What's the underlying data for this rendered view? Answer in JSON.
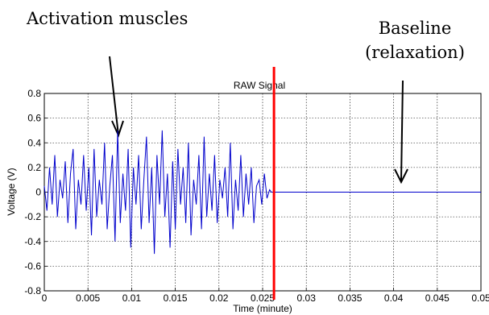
{
  "annotations": {
    "activation": "Activation muscles",
    "baseline_line1": "Baseline",
    "baseline_line2": "(relaxation)"
  },
  "chart_data": {
    "type": "line",
    "title": "RAW Signal",
    "xlabel": "Time (minute)",
    "ylabel": "Voltage (V)",
    "xlim": [
      0,
      0.05
    ],
    "ylim": [
      -0.8,
      0.8
    ],
    "x_ticks": [
      "0",
      "0.005",
      "0.01",
      "0.015",
      "0.02",
      "0.025",
      "0.03",
      "0.035",
      "0.04",
      "0.045",
      "0.05"
    ],
    "y_ticks": [
      "-0.8",
      "-0.6",
      "-0.4",
      "-0.2",
      "0",
      "0.2",
      "0.4",
      "0.6",
      "0.8"
    ],
    "grid": true,
    "series": [
      {
        "color": "#0000cc",
        "x": [
          0,
          0.0003,
          0.0006,
          0.0009,
          0.0012,
          0.0015,
          0.0018,
          0.0021,
          0.0024,
          0.0027,
          0.003,
          0.0033,
          0.0036,
          0.0039,
          0.0042,
          0.0045,
          0.0048,
          0.0051,
          0.0054,
          0.0057,
          0.006,
          0.0063,
          0.0066,
          0.0069,
          0.0072,
          0.0075,
          0.0078,
          0.0081,
          0.0084,
          0.0087,
          0.009,
          0.0093,
          0.0096,
          0.0099,
          0.0102,
          0.0105,
          0.0108,
          0.0111,
          0.0114,
          0.0117,
          0.012,
          0.0123,
          0.0126,
          0.0129,
          0.0132,
          0.0135,
          0.0138,
          0.0141,
          0.0144,
          0.0147,
          0.015,
          0.0153,
          0.0156,
          0.0159,
          0.0162,
          0.0165,
          0.0168,
          0.0171,
          0.0174,
          0.0177,
          0.018,
          0.0183,
          0.0186,
          0.0189,
          0.0192,
          0.0195,
          0.0198,
          0.0201,
          0.0204,
          0.0207,
          0.021,
          0.0213,
          0.0216,
          0.0219,
          0.0222,
          0.0225,
          0.0228,
          0.0231,
          0.0234,
          0.0237,
          0.024,
          0.0243,
          0.0246,
          0.0249,
          0.0252,
          0.0255,
          0.0258,
          0.026,
          0.0265,
          0.03,
          0.035,
          0.04,
          0.045,
          0.05
        ],
        "y": [
          0.05,
          -0.15,
          0.2,
          -0.1,
          0.3,
          -0.2,
          0.1,
          -0.05,
          0.25,
          -0.25,
          0.15,
          0.35,
          -0.3,
          0.1,
          -0.1,
          0.3,
          -0.15,
          0.2,
          -0.35,
          0.35,
          -0.2,
          0.1,
          -0.1,
          0.4,
          -0.3,
          0.05,
          0.3,
          -0.4,
          0.5,
          -0.25,
          0.15,
          -0.15,
          0.35,
          -0.45,
          0.2,
          -0.1,
          0.3,
          -0.3,
          0.1,
          0.45,
          -0.25,
          0.2,
          -0.5,
          0.3,
          -0.1,
          0.5,
          -0.2,
          0.15,
          -0.45,
          0.25,
          -0.3,
          0.35,
          -0.1,
          0.2,
          -0.25,
          0.4,
          -0.35,
          0.1,
          -0.1,
          0.3,
          -0.3,
          0.45,
          -0.2,
          0.15,
          -0.15,
          0.3,
          -0.25,
          0.1,
          -0.05,
          0.2,
          -0.2,
          0.4,
          -0.3,
          0.1,
          -0.15,
          0.3,
          -0.2,
          0.15,
          -0.1,
          0.2,
          -0.25,
          0.05,
          0.1,
          -0.1,
          0.15,
          -0.05,
          0.02,
          0.0,
          0.0,
          0.0,
          0.0,
          0.0,
          0.0,
          0.0
        ]
      }
    ],
    "vline": {
      "x": 0.0263,
      "color": "#ff0000"
    }
  }
}
